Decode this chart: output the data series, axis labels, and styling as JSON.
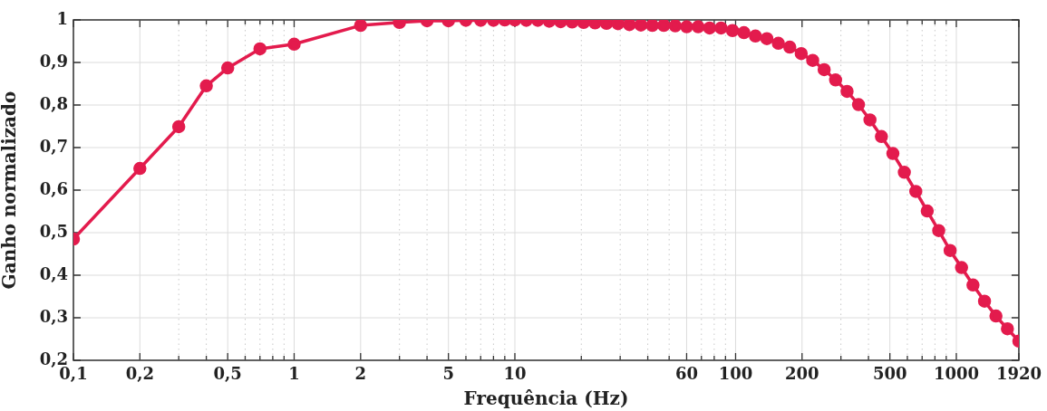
{
  "chart_data": {
    "type": "line",
    "xlabel": "Frequência (Hz)",
    "ylabel": "Ganho normalizado",
    "log": "x",
    "grid": true,
    "legend": false,
    "marker": "circle",
    "line_style": "solid",
    "xlim": [
      0.1,
      1920
    ],
    "ylim": [
      0.2,
      1
    ],
    "xticks": [
      {
        "value": 0.1,
        "label": "0,1"
      },
      {
        "value": 0.2,
        "label": "0,2"
      },
      {
        "value": 0.3,
        "label": null
      },
      {
        "value": 0.4,
        "label": null
      },
      {
        "value": 0.5,
        "label": "0,5"
      },
      {
        "value": 0.6,
        "label": null
      },
      {
        "value": 0.7,
        "label": null
      },
      {
        "value": 0.8,
        "label": null
      },
      {
        "value": 0.9,
        "label": null
      },
      1,
      2,
      {
        "value": 3,
        "label": null
      },
      {
        "value": 4,
        "label": null
      },
      5,
      {
        "value": 6,
        "label": null
      },
      {
        "value": 7,
        "label": null
      },
      {
        "value": 8,
        "label": null
      },
      {
        "value": 9,
        "label": null
      },
      10,
      {
        "value": 20,
        "label": null
      },
      {
        "value": 30,
        "label": null
      },
      {
        "value": 40,
        "label": null
      },
      {
        "value": 50,
        "label": null
      },
      60,
      {
        "value": 70,
        "label": null
      },
      {
        "value": 80,
        "label": null
      },
      {
        "value": 90,
        "label": null
      },
      100,
      200,
      {
        "value": 300,
        "label": null
      },
      {
        "value": 400,
        "label": null
      },
      500,
      {
        "value": 600,
        "label": null
      },
      {
        "value": 700,
        "label": null
      },
      {
        "value": 800,
        "label": null
      },
      {
        "value": 900,
        "label": null
      },
      1000,
      1920
    ],
    "yticks": [
      {
        "value": 0.2,
        "label": "0,2"
      },
      {
        "value": 0.3,
        "label": "0,3"
      },
      {
        "value": 0.4,
        "label": "0,4"
      },
      {
        "value": 0.5,
        "label": "0,5"
      },
      {
        "value": 0.6,
        "label": "0,6"
      },
      {
        "value": 0.7,
        "label": "0,7"
      },
      {
        "value": 0.8,
        "label": "0,8"
      },
      {
        "value": 0.9,
        "label": "0,9"
      },
      1
    ],
    "x": [
      0.1,
      0.2,
      0.3,
      0.4,
      0.5,
      0.7,
      1,
      2,
      3,
      4,
      5,
      6,
      7,
      8,
      9,
      10,
      11.27,
      12.7,
      14.31,
      16.13,
      18.17,
      20.48,
      23.08,
      26.01,
      29.31,
      33.03,
      37.23,
      41.95,
      47.28,
      53.28,
      60.04,
      67.66,
      76.25,
      85.93,
      96.82,
      109.1,
      123,
      138.6,
      156.2,
      176,
      198.3,
      223.5,
      251.9,
      283.8,
      319.9,
      360.5,
      406.2,
      457.8,
      515.9,
      581.4,
      655.2,
      738.3,
      832.1,
      937.4,
      1056,
      1190,
      1342,
      1512,
      1704,
      1920
    ],
    "series": [
      {
        "color": "#e31b4d",
        "values": [
          0.485,
          0.651,
          0.749,
          0.845,
          0.887,
          0.932,
          0.943,
          0.987,
          0.994,
          0.998,
          0.998,
          0.999,
          0.999,
          0.999,
          1,
          1,
          0.999,
          0.999,
          0.997,
          0.996,
          0.995,
          0.994,
          0.993,
          0.992,
          0.991,
          0.989,
          0.988,
          0.987,
          0.987,
          0.986,
          0.984,
          0.984,
          0.981,
          0.981,
          0.975,
          0.97,
          0.962,
          0.956,
          0.945,
          0.936,
          0.921,
          0.905,
          0.883,
          0.859,
          0.832,
          0.801,
          0.765,
          0.726,
          0.686,
          0.642,
          0.597,
          0.551,
          0.505,
          0.458,
          0.418,
          0.377,
          0.339,
          0.304,
          0.274,
          0.245
        ]
      }
    ]
  }
}
